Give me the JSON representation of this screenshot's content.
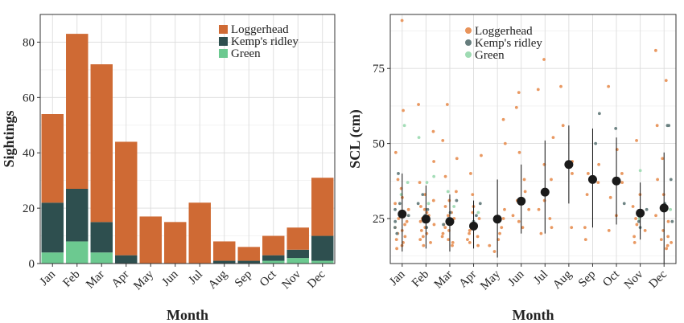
{
  "chart_data": [
    {
      "type": "bar",
      "stacked": true,
      "xlabel": "Month",
      "ylabel": "Sightings",
      "ylim": [
        0,
        90
      ],
      "yticks": [
        0,
        20,
        40,
        60,
        80
      ],
      "grid": true,
      "legend_position": "top-right",
      "categories": [
        "Jan",
        "Feb",
        "Mar",
        "Apr",
        "May",
        "Jun",
        "Jul",
        "Aug",
        "Sep",
        "Oct",
        "Nov",
        "Dec"
      ],
      "series": [
        {
          "name": "Green",
          "color": "#6cc990",
          "values": [
            4,
            8,
            4,
            0,
            0,
            0,
            0,
            0,
            0,
            1,
            2,
            1
          ]
        },
        {
          "name": "Kemp's ridley",
          "color": "#2e4f4f",
          "values": [
            18,
            19,
            11,
            3,
            0,
            0,
            0,
            1,
            1,
            2,
            3,
            9
          ]
        },
        {
          "name": "Loggerhead",
          "color": "#cf6a34",
          "values": [
            32,
            56,
            57,
            41,
            17,
            15,
            22,
            7,
            5,
            7,
            8,
            21
          ]
        }
      ],
      "legend_order": [
        "Loggerhead",
        "Kemp's ridley",
        "Green"
      ]
    },
    {
      "type": "scatter",
      "xlabel": "Month",
      "ylabel": "SCL (cm)",
      "ylim": [
        10,
        93
      ],
      "yticks": [
        25,
        50,
        75
      ],
      "grid": true,
      "legend_position": "top-center",
      "categories": [
        "Jan",
        "Feb",
        "Mar",
        "Apr",
        "May",
        "Jun",
        "Jul",
        "Aug",
        "Sep",
        "Oct",
        "Nov",
        "Dec"
      ],
      "legend": [
        {
          "name": "Loggerhead",
          "color": "#e8935a"
        },
        {
          "name": "Kemp's ridley",
          "color": "#667d7d"
        },
        {
          "name": "Green",
          "color": "#9fdbb3"
        }
      ],
      "summary": {
        "mean": [
          26.5,
          24.8,
          24,
          22.5,
          24.8,
          30.8,
          33.8,
          43,
          38,
          37.5,
          26.8,
          28.5
        ],
        "lower": [
          14,
          15,
          14,
          15,
          12,
          20,
          20,
          30,
          22,
          23,
          18,
          10
        ],
        "upper": [
          40,
          36,
          33,
          31,
          38,
          43,
          51,
          56,
          55,
          52,
          37,
          47
        ]
      },
      "points": [
        {
          "species": "Loggerhead",
          "points": [
            [
              "Jan",
              91
            ],
            [
              "Jan",
              61
            ],
            [
              "Jan",
              47
            ],
            [
              "Jan",
              38
            ],
            [
              "Jan",
              35
            ],
            [
              "Jan",
              32
            ],
            [
              "Jan",
              30
            ],
            [
              "Jan",
              28
            ],
            [
              "Jan",
              27
            ],
            [
              "Jan",
              26
            ],
            [
              "Jan",
              25
            ],
            [
              "Jan",
              24
            ],
            [
              "Jan",
              23
            ],
            [
              "Jan",
              22
            ],
            [
              "Jan",
              21
            ],
            [
              "Jan",
              20
            ],
            [
              "Jan",
              19
            ],
            [
              "Jan",
              18
            ],
            [
              "Jan",
              17
            ],
            [
              "Jan",
              16
            ],
            [
              "Jan",
              15
            ],
            [
              "Feb",
              63
            ],
            [
              "Feb",
              54
            ],
            [
              "Feb",
              44
            ],
            [
              "Feb",
              37
            ],
            [
              "Feb",
              33
            ],
            [
              "Feb",
              31
            ],
            [
              "Feb",
              29
            ],
            [
              "Feb",
              28
            ],
            [
              "Feb",
              27
            ],
            [
              "Feb",
              26
            ],
            [
              "Feb",
              25
            ],
            [
              "Feb",
              24
            ],
            [
              "Feb",
              23
            ],
            [
              "Feb",
              22
            ],
            [
              "Feb",
              21
            ],
            [
              "Feb",
              20
            ],
            [
              "Feb",
              19
            ],
            [
              "Feb",
              18
            ],
            [
              "Feb",
              17
            ],
            [
              "Feb",
              16
            ],
            [
              "Mar",
              63
            ],
            [
              "Mar",
              51
            ],
            [
              "Mar",
              45
            ],
            [
              "Mar",
              39
            ],
            [
              "Mar",
              34
            ],
            [
              "Mar",
              31
            ],
            [
              "Mar",
              29
            ],
            [
              "Mar",
              27
            ],
            [
              "Mar",
              26
            ],
            [
              "Mar",
              25
            ],
            [
              "Mar",
              24
            ],
            [
              "Mar",
              23
            ],
            [
              "Mar",
              22
            ],
            [
              "Mar",
              21
            ],
            [
              "Mar",
              20
            ],
            [
              "Mar",
              19
            ],
            [
              "Mar",
              18
            ],
            [
              "Mar",
              17
            ],
            [
              "Mar",
              16
            ],
            [
              "Apr",
              46
            ],
            [
              "Apr",
              40
            ],
            [
              "Apr",
              33
            ],
            [
              "Apr",
              29
            ],
            [
              "Apr",
              27
            ],
            [
              "Apr",
              25
            ],
            [
              "Apr",
              23
            ],
            [
              "Apr",
              22
            ],
            [
              "Apr",
              21
            ],
            [
              "Apr",
              20
            ],
            [
              "Apr",
              19
            ],
            [
              "Apr",
              18
            ],
            [
              "Apr",
              17
            ],
            [
              "Apr",
              16
            ],
            [
              "May",
              58
            ],
            [
              "May",
              50
            ],
            [
              "May",
              28
            ],
            [
              "May",
              25
            ],
            [
              "May",
              22
            ],
            [
              "May",
              20
            ],
            [
              "May",
              18
            ],
            [
              "May",
              16
            ],
            [
              "May",
              14
            ],
            [
              "Jun",
              67
            ],
            [
              "Jun",
              62
            ],
            [
              "Jun",
              47
            ],
            [
              "Jun",
              38
            ],
            [
              "Jun",
              34
            ],
            [
              "Jun",
              31
            ],
            [
              "Jun",
              28
            ],
            [
              "Jun",
              26
            ],
            [
              "Jun",
              24
            ],
            [
              "Jun",
              22
            ],
            [
              "Jul",
              78
            ],
            [
              "Jul",
              68
            ],
            [
              "Jul",
              52
            ],
            [
              "Jul",
              43
            ],
            [
              "Jul",
              38
            ],
            [
              "Jul",
              34
            ],
            [
              "Jul",
              31
            ],
            [
              "Jul",
              28
            ],
            [
              "Jul",
              25
            ],
            [
              "Jul",
              22
            ],
            [
              "Jul",
              20
            ],
            [
              "Aug",
              69
            ],
            [
              "Aug",
              56
            ],
            [
              "Aug",
              44
            ],
            [
              "Aug",
              40
            ],
            [
              "Aug",
              22
            ],
            [
              "Sep",
              43
            ],
            [
              "Sep",
              40
            ],
            [
              "Sep",
              37
            ],
            [
              "Sep",
              33
            ],
            [
              "Sep",
              22
            ],
            [
              "Sep",
              18
            ],
            [
              "Oct",
              69
            ],
            [
              "Oct",
              48
            ],
            [
              "Oct",
              40
            ],
            [
              "Oct",
              37
            ],
            [
              "Oct",
              32
            ],
            [
              "Oct",
              26
            ],
            [
              "Oct",
              21
            ],
            [
              "Nov",
              51
            ],
            [
              "Nov",
              33
            ],
            [
              "Nov",
              29
            ],
            [
              "Nov",
              27
            ],
            [
              "Nov",
              25
            ],
            [
              "Nov",
              23
            ],
            [
              "Nov",
              21
            ],
            [
              "Nov",
              19
            ],
            [
              "Nov",
              17
            ],
            [
              "Dec",
              81
            ],
            [
              "Dec",
              71
            ],
            [
              "Dec",
              56
            ],
            [
              "Dec",
              45
            ],
            [
              "Dec",
              38
            ],
            [
              "Dec",
              33
            ],
            [
              "Dec",
              29
            ],
            [
              "Dec",
              26
            ],
            [
              "Dec",
              24
            ],
            [
              "Dec",
              21
            ],
            [
              "Dec",
              19
            ],
            [
              "Dec",
              18
            ],
            [
              "Dec",
              17
            ],
            [
              "Dec",
              16
            ],
            [
              "Dec",
              15
            ]
          ]
        },
        {
          "species": "Kemp's ridley",
          "points": [
            [
              "Jan",
              40
            ],
            [
              "Jan",
              30
            ],
            [
              "Jan",
              28
            ],
            [
              "Jan",
              26
            ],
            [
              "Jan",
              24
            ],
            [
              "Jan",
              22
            ],
            [
              "Jan",
              20
            ],
            [
              "Feb",
              33
            ],
            [
              "Feb",
              30
            ],
            [
              "Feb",
              28
            ],
            [
              "Feb",
              26
            ],
            [
              "Feb",
              24
            ],
            [
              "Feb",
              22
            ],
            [
              "Mar",
              31
            ],
            [
              "Mar",
              27
            ],
            [
              "Mar",
              25
            ],
            [
              "Mar",
              23
            ],
            [
              "Apr",
              30
            ],
            [
              "Apr",
              26
            ],
            [
              "Apr",
              24
            ],
            [
              "Sep",
              60
            ],
            [
              "Sep",
              50
            ],
            [
              "Oct",
              55
            ],
            [
              "Oct",
              30
            ],
            [
              "Nov",
              28
            ],
            [
              "Nov",
              24
            ],
            [
              "Nov",
              22
            ],
            [
              "Dec",
              56
            ],
            [
              "Dec",
              56
            ],
            [
              "Dec",
              38
            ],
            [
              "Dec",
              30
            ],
            [
              "Dec",
              24
            ]
          ]
        },
        {
          "species": "Green",
          "points": [
            [
              "Jan",
              56
            ],
            [
              "Jan",
              37
            ],
            [
              "Jan",
              33
            ],
            [
              "Feb",
              52
            ],
            [
              "Feb",
              39
            ],
            [
              "Feb",
              37
            ],
            [
              "Feb",
              30
            ],
            [
              "Mar",
              34
            ],
            [
              "Mar",
              29
            ],
            [
              "Apr",
              27
            ],
            [
              "Nov",
              41
            ],
            [
              "Nov",
              25
            ],
            [
              "Dec",
              28
            ]
          ]
        }
      ]
    }
  ]
}
